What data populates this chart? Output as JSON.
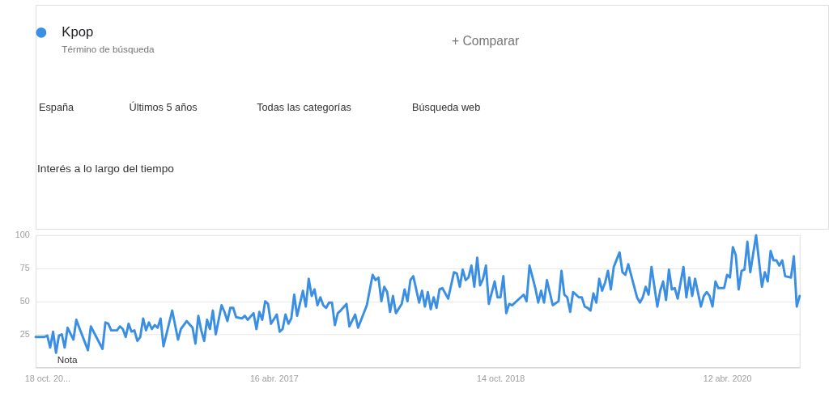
{
  "chart_data": {
    "type": "line",
    "title": "Interés a lo largo del tiempo",
    "legend": "top left",
    "grid": "y",
    "marker": "none",
    "line_style": "solid",
    "annotations": [
      "Término de búsqueda",
      "+ Comparar",
      "España",
      "Últimos 5 años",
      "Todas las categorías",
      "Búsqueda web",
      "Nota"
    ],
    "xlim": [
      "2015-09-20",
      "2020-10-04"
    ],
    "xticks": [
      {
        "value": "2015-10-18",
        "label": "18 oct. 20..."
      },
      {
        "value": "2017-04-16",
        "label": "16 abr. 2017"
      },
      {
        "value": "2018-10-14",
        "label": "14 oct. 2018"
      },
      {
        "value": "2020-04-12",
        "label": "12 abr. 2020"
      }
    ],
    "ylim": [
      0,
      100
    ],
    "yticks": [
      25,
      50,
      75,
      100
    ],
    "x": [
      "2015-09-20",
      "2015-10-11",
      "2015-10-18",
      "2015-10-25",
      "2015-11-01",
      "2015-11-08",
      "2015-11-15",
      "2015-11-22",
      "2015-11-29",
      "2015-12-06",
      "2015-12-20",
      "2015-12-27",
      "2016-01-03",
      "2016-01-24",
      "2016-01-31",
      "2016-02-28",
      "2016-03-06",
      "2016-03-13",
      "2016-03-20",
      "2016-04-03",
      "2016-04-10",
      "2016-04-17",
      "2016-04-24",
      "2016-05-01",
      "2016-05-08",
      "2016-05-15",
      "2016-05-22",
      "2016-05-29",
      "2016-06-05",
      "2016-06-12",
      "2016-06-19",
      "2016-06-26",
      "2016-07-03",
      "2016-07-10",
      "2016-07-17",
      "2016-07-24",
      "2016-08-14",
      "2016-08-28",
      "2016-09-04",
      "2016-09-18",
      "2016-10-02",
      "2016-10-09",
      "2016-10-16",
      "2016-10-23",
      "2016-10-30",
      "2016-11-06",
      "2016-11-13",
      "2016-11-20",
      "2016-11-27",
      "2016-12-11",
      "2016-12-18",
      "2016-12-25",
      "2017-01-01",
      "2017-01-08",
      "2017-01-15",
      "2017-01-29",
      "2017-02-05",
      "2017-02-12",
      "2017-02-26",
      "2017-03-05",
      "2017-03-12",
      "2017-03-19",
      "2017-03-26",
      "2017-04-02",
      "2017-04-09",
      "2017-04-23",
      "2017-04-30",
      "2017-05-07",
      "2017-05-14",
      "2017-05-21",
      "2017-05-28",
      "2017-06-04",
      "2017-06-11",
      "2017-06-25",
      "2017-07-02",
      "2017-07-09",
      "2017-07-16",
      "2017-07-23",
      "2017-07-30",
      "2017-08-06",
      "2017-08-13",
      "2017-08-20",
      "2017-08-27",
      "2017-09-03",
      "2017-09-10",
      "2017-09-17",
      "2017-09-24",
      "2017-10-08",
      "2017-10-15",
      "2017-10-29",
      "2017-11-05",
      "2017-11-26",
      "2017-12-10",
      "2017-12-17",
      "2017-12-24",
      "2017-12-31",
      "2018-01-07",
      "2018-01-14",
      "2018-01-21",
      "2018-01-28",
      "2018-02-04",
      "2018-02-18",
      "2018-02-25",
      "2018-03-04",
      "2018-03-11",
      "2018-03-18",
      "2018-04-01",
      "2018-04-08",
      "2018-04-15",
      "2018-04-22",
      "2018-04-29",
      "2018-05-06",
      "2018-05-13",
      "2018-05-20",
      "2018-05-27",
      "2018-06-10",
      "2018-06-24",
      "2018-07-01",
      "2018-07-08",
      "2018-07-15",
      "2018-07-22",
      "2018-07-29",
      "2018-08-05",
      "2018-08-12",
      "2018-08-19",
      "2018-08-26",
      "2018-09-02",
      "2018-09-09",
      "2018-09-16",
      "2018-09-30",
      "2018-10-07",
      "2018-10-14",
      "2018-10-21",
      "2018-10-28",
      "2018-11-04",
      "2018-11-11",
      "2018-12-02",
      "2018-12-09",
      "2018-12-16",
      "2018-12-23",
      "2019-01-06",
      "2019-01-13",
      "2019-01-20",
      "2019-01-27",
      "2019-02-03",
      "2019-02-17",
      "2019-03-03",
      "2019-03-10",
      "2019-03-17",
      "2019-03-24",
      "2019-03-31",
      "2019-04-07",
      "2019-04-21",
      "2019-04-28",
      "2019-05-05",
      "2019-05-12",
      "2019-05-19",
      "2019-05-26",
      "2019-06-02",
      "2019-06-09",
      "2019-06-16",
      "2019-06-23",
      "2019-06-30",
      "2019-07-07",
      "2019-07-14",
      "2019-07-28",
      "2019-08-04",
      "2019-08-11",
      "2019-08-18",
      "2019-09-08",
      "2019-09-15",
      "2019-09-22",
      "2019-09-29",
      "2019-10-06",
      "2019-10-13",
      "2019-10-27",
      "2019-11-03",
      "2019-11-10",
      "2019-11-17",
      "2019-11-24",
      "2019-12-01",
      "2019-12-08",
      "2019-12-15",
      "2019-12-29",
      "2020-01-05",
      "2020-01-12",
      "2020-01-19",
      "2020-01-26",
      "2020-02-09",
      "2020-02-16",
      "2020-02-23",
      "2020-03-01",
      "2020-03-08",
      "2020-03-15",
      "2020-03-22",
      "2020-04-05",
      "2020-04-12",
      "2020-04-19",
      "2020-04-26",
      "2020-05-03",
      "2020-05-10",
      "2020-05-17",
      "2020-05-24",
      "2020-05-31",
      "2020-06-07",
      "2020-06-21",
      "2020-07-05",
      "2020-07-12",
      "2020-07-19",
      "2020-07-26",
      "2020-08-02",
      "2020-08-09",
      "2020-08-16",
      "2020-08-23",
      "2020-08-30",
      "2020-09-13",
      "2020-09-20",
      "2020-09-27",
      "2020-10-04"
    ],
    "series": [
      {
        "name": "Kpop",
        "color": "#3b8fe3",
        "values": [
          23,
          23,
          24,
          15,
          27,
          11,
          24,
          25,
          15,
          30,
          21,
          36,
          30,
          13,
          31,
          14,
          34,
          33,
          28,
          28,
          31,
          29,
          23,
          33,
          27,
          28,
          20,
          23,
          37,
          28,
          34,
          29,
          32,
          30,
          37,
          16,
          43,
          21,
          29,
          35,
          30,
          18,
          39,
          28,
          20,
          36,
          29,
          43,
          25,
          47,
          42,
          35,
          45,
          45,
          38,
          37,
          39,
          36,
          41,
          29,
          42,
          36,
          50,
          48,
          33,
          40,
          27,
          29,
          40,
          33,
          37,
          55,
          39,
          58,
          46,
          67,
          54,
          59,
          47,
          53,
          47,
          45,
          49,
          49,
          32,
          41,
          43,
          48,
          31,
          40,
          30,
          47,
          70,
          66,
          68,
          50,
          61,
          57,
          42,
          54,
          41,
          48,
          59,
          50,
          66,
          69,
          49,
          58,
          46,
          57,
          44,
          53,
          45,
          59,
          60,
          52,
          72,
          71,
          61,
          74,
          66,
          68,
          77,
          61,
          83,
          62,
          67,
          77,
          48,
          65,
          53,
          53,
          69,
          41,
          48,
          47,
          53,
          55,
          50,
          77,
          60,
          49,
          58,
          49,
          66,
          47,
          50,
          73,
          55,
          53,
          42,
          57,
          53,
          53,
          46,
          45,
          43,
          56,
          49,
          67,
          58,
          64,
          73,
          59,
          76,
          87,
          72,
          70,
          78,
          53,
          49,
          53,
          61,
          55,
          76,
          46,
          58,
          65,
          51,
          74,
          59,
          60,
          52,
          76,
          53,
          68,
          54,
          67,
          46,
          54,
          57,
          54,
          46,
          65,
          60,
          60,
          70,
          68,
          91,
          85,
          59,
          73,
          74,
          95,
          72,
          100,
          61,
          72,
          65,
          88,
          81,
          81,
          77,
          81,
          69,
          68,
          84,
          46,
          54
        ]
      }
    ]
  }
}
